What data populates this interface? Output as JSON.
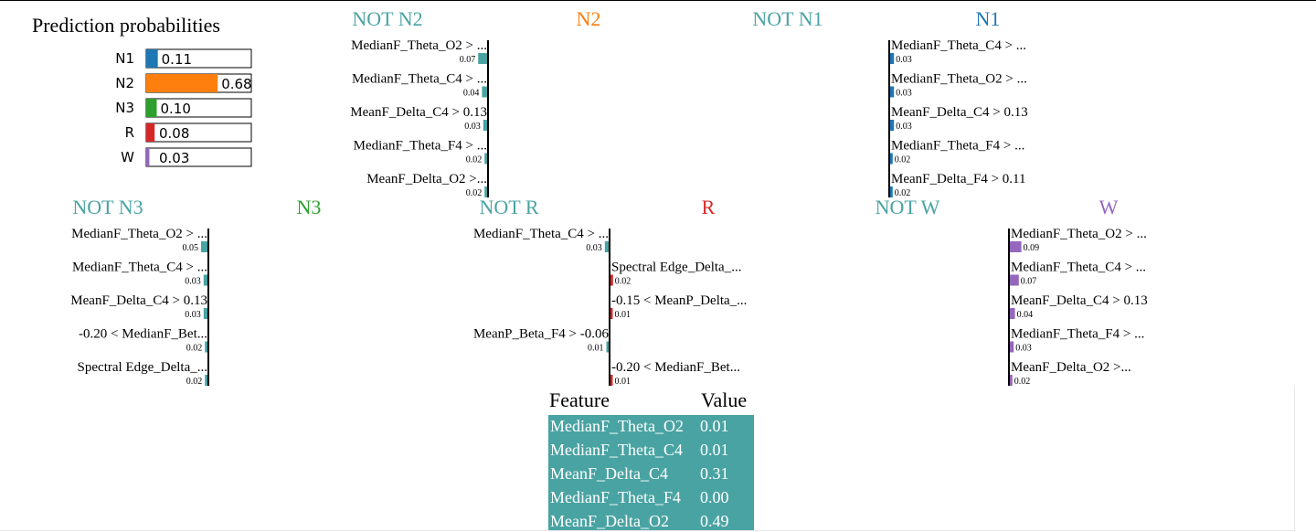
{
  "prediction": {
    "title": "Prediction probabilities",
    "items": [
      {
        "label": "N1",
        "value": 0.11,
        "text": "0.11",
        "color": "#1f77b4"
      },
      {
        "label": "N2",
        "value": 0.68,
        "text": "0.68",
        "color": "#ff7f0e"
      },
      {
        "label": "N3",
        "value": 0.1,
        "text": "0.10",
        "color": "#2ca02c"
      },
      {
        "label": "R",
        "value": 0.08,
        "text": "0.08",
        "color": "#d62728"
      },
      {
        "label": "W",
        "value": 0.03,
        "text": "0.03",
        "color": "#9467bd"
      }
    ]
  },
  "chart_data": [
    {
      "type": "bar",
      "not_title": "NOT N2",
      "class_title": "N2",
      "not_color": "#4aa3a3",
      "class_color": "#ff7f0e",
      "features": [
        {
          "label": "MedianF_Theta_O2 > ...",
          "value": -0.07,
          "text": "0.07"
        },
        {
          "label": "MedianF_Theta_C4 > ...",
          "value": -0.04,
          "text": "0.04"
        },
        {
          "label": "MeanF_Delta_C4 > 0.13",
          "value": -0.03,
          "text": "0.03"
        },
        {
          "label": "MedianF_Theta_F4 > ...",
          "value": -0.02,
          "text": "0.02"
        },
        {
          "label": "MeanF_Delta_O2 >...",
          "value": -0.02,
          "text": "0.02"
        }
      ]
    },
    {
      "type": "bar",
      "not_title": "NOT N1",
      "class_title": "N1",
      "not_color": "#4aa3a3",
      "class_color": "#1f77b4",
      "features": [
        {
          "label": "MedianF_Theta_C4 > ...",
          "value": 0.03,
          "text": "0.03"
        },
        {
          "label": "MedianF_Theta_O2 > ...",
          "value": 0.03,
          "text": "0.03"
        },
        {
          "label": "MeanF_Delta_C4 > 0.13",
          "value": 0.03,
          "text": "0.03"
        },
        {
          "label": "MedianF_Theta_F4 > ...",
          "value": 0.02,
          "text": "0.02"
        },
        {
          "label": "MeanF_Delta_F4 > 0.11",
          "value": 0.02,
          "text": "0.02"
        }
      ]
    },
    {
      "type": "bar",
      "not_title": "NOT N3",
      "class_title": "N3",
      "not_color": "#4aa3a3",
      "class_color": "#2ca02c",
      "features": [
        {
          "label": "MedianF_Theta_O2 > ...",
          "value": -0.05,
          "text": "0.05"
        },
        {
          "label": "MedianF_Theta_C4 > ...",
          "value": -0.03,
          "text": "0.03"
        },
        {
          "label": "MeanF_Delta_C4 > 0.13",
          "value": -0.03,
          "text": "0.03"
        },
        {
          "label": "-0.20 < MedianF_Bet...",
          "value": -0.02,
          "text": "0.02"
        },
        {
          "label": "Spectral Edge_Delta_...",
          "value": -0.02,
          "text": "0.02"
        }
      ]
    },
    {
      "type": "bar",
      "not_title": "NOT R",
      "class_title": "R",
      "not_color": "#4aa3a3",
      "class_color": "#d62728",
      "features": [
        {
          "label": "MedianF_Theta_C4 > ...",
          "value": -0.03,
          "text": "0.03"
        },
        {
          "label": "Spectral Edge_Delta_...",
          "value": 0.02,
          "text": "0.02"
        },
        {
          "label": "-0.15 < MeanP_Delta_...",
          "value": 0.01,
          "text": "0.01"
        },
        {
          "label": "MeanP_Beta_F4 > -0.06",
          "value": -0.01,
          "text": "0.01"
        },
        {
          "label": "-0.20 < MedianF_Bet...",
          "value": 0.01,
          "text": "0.01"
        }
      ]
    },
    {
      "type": "bar",
      "not_title": "NOT W",
      "class_title": "W",
      "not_color": "#4aa3a3",
      "class_color": "#9467bd",
      "features": [
        {
          "label": "MedianF_Theta_O2 > ...",
          "value": 0.09,
          "text": "0.09"
        },
        {
          "label": "MedianF_Theta_C4 > ...",
          "value": 0.07,
          "text": "0.07"
        },
        {
          "label": "MeanF_Delta_C4 > 0.13",
          "value": 0.04,
          "text": "0.04"
        },
        {
          "label": "MedianF_Theta_F4 > ...",
          "value": 0.03,
          "text": "0.03"
        },
        {
          "label": "MeanF_Delta_O2 >...",
          "value": 0.02,
          "text": "0.02"
        }
      ]
    }
  ],
  "feature_table": {
    "headers": [
      "Feature",
      "Value"
    ],
    "highlight_color": "#4aa3a3",
    "rows": [
      {
        "feature": "MedianF_Theta_O2",
        "value": "0.01"
      },
      {
        "feature": "MedianF_Theta_C4",
        "value": "0.01"
      },
      {
        "feature": "MeanF_Delta_C4",
        "value": "0.31"
      },
      {
        "feature": "MedianF_Theta_F4",
        "value": "0.00"
      },
      {
        "feature": "MeanF_Delta_O2",
        "value": "0.49"
      }
    ]
  }
}
